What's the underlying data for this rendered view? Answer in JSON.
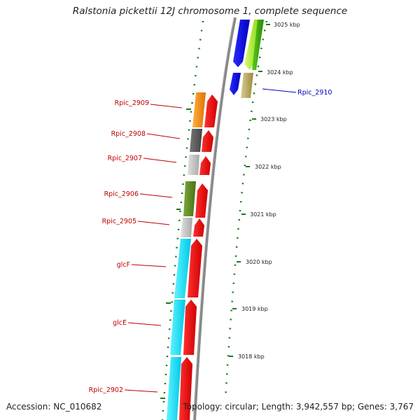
{
  "header": {
    "title": "Ralstonia pickettii 12J chromosome 1, complete sequence"
  },
  "footer": {
    "accession": "Accession: NC_010682",
    "summary": "Topology: circular; Length: 3,942,557 bp; Genes: 3,767"
  },
  "colors": {
    "gene_label": "#c00000",
    "forward_label": "#0000c0",
    "tick": "#1a7a1a",
    "strand_line": "#888888"
  },
  "scale_labels": [
    "3025 kbp",
    "3024 kbp",
    "3023 kbp",
    "3022 kbp",
    "3021 kbp",
    "3020 kbp",
    "3019 kbp",
    "3018 kbp"
  ],
  "genes": [
    {
      "label": "Rpic_2909",
      "cog_color": "#ff8c00"
    },
    {
      "label": "Rpic_2908",
      "cog_color": "#555555"
    },
    {
      "label": "Rpic_2907",
      "cog_color": "#bbbbbb"
    },
    {
      "label": "Rpic_2906",
      "cog_color": "#5a8a1e"
    },
    {
      "label": "Rpic_2905",
      "cog_color": "#c8c8c8"
    },
    {
      "label": "glcF",
      "cog_color": "#00e5ff"
    },
    {
      "label": "glcE",
      "cog_color": "#00e5ff"
    },
    {
      "label": "Rpic_2902",
      "cog_color": "#00e5ff"
    }
  ],
  "forward_genes": [
    {
      "label": "Rpic_2910",
      "cog_color": "#b8a860"
    }
  ]
}
